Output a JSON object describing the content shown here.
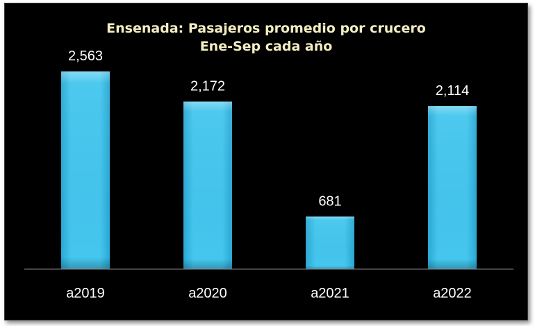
{
  "chart_data": {
    "type": "bar",
    "title": "Ensenada: Pasajeros promedio por crucero",
    "subtitle": "Ene-Sep cada año",
    "categories": [
      "a2019",
      "a2020",
      "a2021",
      "a2022"
    ],
    "values": [
      2563,
      2172,
      681,
      2114
    ],
    "value_labels": [
      "2,563",
      "2,172",
      "681",
      "2,114"
    ],
    "ylim": [
      0,
      2563
    ],
    "grid": false,
    "legend": "none",
    "colors": {
      "background": "#000000",
      "bar_top": "#7fdcf6",
      "bar_mid": "#3fc3ec",
      "bar_bottom": "#2aa8d4",
      "title": "#f3eec2",
      "text": "#ffffff",
      "axis": "#8a8a8a"
    }
  }
}
